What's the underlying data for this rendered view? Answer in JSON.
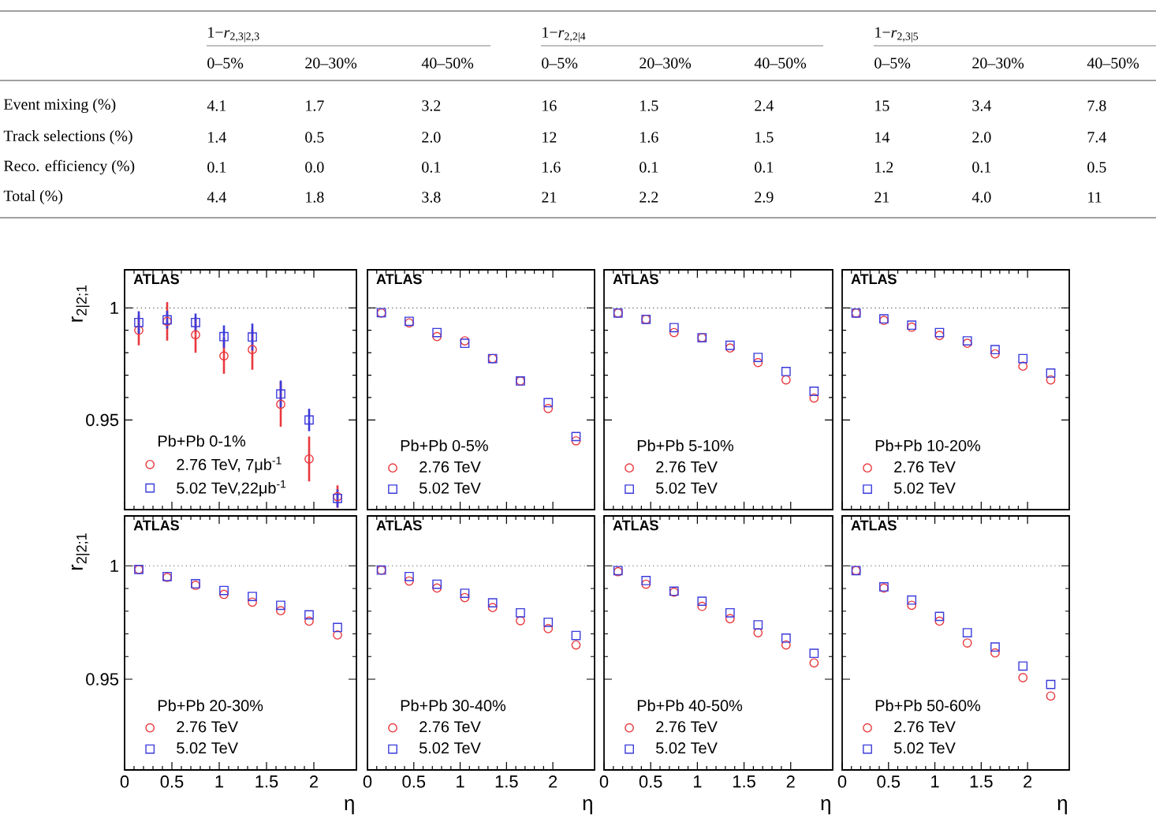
{
  "chart_data": [
    {
      "type": "other",
      "annotations": [
        "1−*r*$_{2,3|2,3}$",
        "1−*r*$_{2,2|4}$",
        "1−*r*$_{2,3|5}$",
        "0–5%",
        "20–30%",
        "40–50%",
        "0–5%",
        "20–30%",
        "40–50%",
        "0–5%",
        "20–30%",
        "40–50%",
        "Event mixing (%)",
        "4.1",
        "1.7",
        "3.2",
        "16",
        "1.5",
        "2.4",
        "15",
        "3.4",
        "7.8",
        "Track selections (%)",
        "1.4",
        "0.5",
        "2.0",
        "12",
        "1.6",
        "1.5",
        "14",
        "2.0",
        "7.4",
        "Reco. efficiency (%)",
        "0.1",
        "0.0",
        "0.1",
        "1.6",
        "0.1",
        "0.1",
        "1.2",
        "0.1",
        "0.5",
        "Total (%)",
        "4.4",
        "1.8",
        "3.8",
        "21",
        "2.2",
        "2.9",
        "21",
        "4.0",
        "11"
      ]
    },
    {
      "type": "scatter",
      "ylabel": "r$_{2|2;1}$",
      "legend_title": "Pb+Pb 0-1%",
      "legend": "bottom left",
      "annotations": [
        "ATLAS"
      ],
      "tick_labels": "y",
      "x": [
        0.15,
        0.45,
        0.75,
        1.05,
        1.35,
        1.65,
        1.95,
        2.25
      ],
      "xlim": [
        0,
        2.45
      ],
      "xticks": [
        0,
        0.5,
        1,
        1.5,
        2
      ],
      "ylim": [
        0.91,
        1.017
      ],
      "yticks": [
        0.95,
        1
      ],
      "ref_lines": [
        {
          "axis": "y",
          "value": 1,
          "line_style": "dotted",
          "color": "#555555"
        }
      ],
      "series": [
        {
          "name": "2.76 TeV, 7μb$^{-1}$",
          "color": "#e8383d",
          "marker": "circle",
          "values": [
            0.99,
            0.994,
            0.988,
            0.9786,
            0.9814,
            0.957,
            0.9326,
            0.9158
          ],
          "errors": [
            0.0067,
            0.0086,
            0.008,
            0.008,
            0.009,
            0.01,
            0.01,
            0.005
          ]
        },
        {
          "name": "5.02 TeV,22μb$^{-1}$",
          "color": "#3b3bdc",
          "marker": "square",
          "values": [
            0.9935,
            0.9947,
            0.9935,
            0.9872,
            0.987,
            0.9616,
            0.95,
            0.915
          ],
          "errors": [
            0.005,
            0.004,
            0.004,
            0.005,
            0.006,
            0.006,
            0.005,
            0.004
          ]
        }
      ]
    },
    {
      "type": "scatter",
      "legend_title": "Pb+Pb 0-5%",
      "legend": "bottom left",
      "annotations": [
        "ATLAS"
      ],
      "tick_labels": false,
      "x": [
        0.15,
        0.45,
        0.75,
        1.05,
        1.35,
        1.65,
        1.95,
        2.25
      ],
      "xlim": [
        0,
        2.45
      ],
      "xticks": [
        0,
        0.5,
        1,
        1.5,
        2
      ],
      "ylim": [
        0.91,
        1.017
      ],
      "yticks": [
        0.95,
        1
      ],
      "ref_lines": [
        {
          "axis": "y",
          "value": 1,
          "line_style": "dotted",
          "color": "#555555"
        }
      ],
      "series": [
        {
          "name": "2.76 TeV",
          "color": "#e8383d",
          "marker": "circle",
          "values": [
            0.9977,
            0.9933,
            0.9872,
            0.9853,
            0.9774,
            0.9674,
            0.9551,
            0.9407
          ]
        },
        {
          "name": "5.02 TeV",
          "color": "#3b3bdc",
          "marker": "square",
          "values": [
            0.9979,
            0.994,
            0.989,
            0.9842,
            0.9774,
            0.9674,
            0.9577,
            0.9426
          ]
        }
      ]
    },
    {
      "type": "scatter",
      "legend_title": "Pb+Pb 5-10%",
      "legend": "bottom left",
      "annotations": [
        "ATLAS"
      ],
      "tick_labels": false,
      "x": [
        0.15,
        0.45,
        0.75,
        1.05,
        1.35,
        1.65,
        1.95,
        2.25
      ],
      "xlim": [
        0,
        2.45
      ],
      "xticks": [
        0,
        0.5,
        1,
        1.5,
        2
      ],
      "ylim": [
        0.91,
        1.017
      ],
      "yticks": [
        0.95,
        1
      ],
      "ref_lines": [
        {
          "axis": "y",
          "value": 1,
          "line_style": "dotted",
          "color": "#555555"
        }
      ],
      "series": [
        {
          "name": "2.76 TeV",
          "color": "#e8383d",
          "marker": "circle",
          "values": [
            0.9977,
            0.9949,
            0.989,
            0.9867,
            0.9821,
            0.9756,
            0.9679,
            0.9598
          ]
        },
        {
          "name": "5.02 TeV",
          "color": "#3b3bdc",
          "marker": "square",
          "values": [
            0.9977,
            0.9949,
            0.9912,
            0.9867,
            0.9833,
            0.9779,
            0.9716,
            0.9628
          ]
        }
      ]
    },
    {
      "type": "scatter",
      "legend_title": "Pb+Pb 10-20%",
      "legend": "bottom left",
      "annotations": [
        "ATLAS"
      ],
      "tick_labels": false,
      "x": [
        0.15,
        0.45,
        0.75,
        1.05,
        1.35,
        1.65,
        1.95,
        2.25
      ],
      "xlim": [
        0,
        2.45
      ],
      "xticks": [
        0,
        0.5,
        1,
        1.5,
        2
      ],
      "ylim": [
        0.91,
        1.017
      ],
      "yticks": [
        0.95,
        1
      ],
      "ref_lines": [
        {
          "axis": "y",
          "value": 1,
          "line_style": "dotted",
          "color": "#555555"
        }
      ],
      "series": [
        {
          "name": "2.76 TeV",
          "color": "#e8383d",
          "marker": "circle",
          "values": [
            0.9977,
            0.9944,
            0.9914,
            0.9877,
            0.9842,
            0.9795,
            0.974,
            0.9679
          ]
        },
        {
          "name": "5.02 TeV",
          "color": "#3b3bdc",
          "marker": "square",
          "values": [
            0.9977,
            0.9951,
            0.9923,
            0.989,
            0.9853,
            0.9814,
            0.9774,
            0.9709
          ]
        }
      ]
    },
    {
      "type": "scatter",
      "ylabel": "r$_{2|2;1}$",
      "xlabel": "η",
      "legend_title": "Pb+Pb 20-30%",
      "legend": "bottom left",
      "annotations": [
        "ATLAS"
      ],
      "x": [
        0.15,
        0.45,
        0.75,
        1.05,
        1.35,
        1.65,
        1.95,
        2.25
      ],
      "xlim": [
        0,
        2.45
      ],
      "xticks": [
        0,
        0.5,
        1,
        1.5,
        2
      ],
      "ylim": [
        0.91,
        1.022
      ],
      "yticks": [
        0.95,
        1
      ],
      "ref_lines": [
        {
          "axis": "y",
          "value": 1,
          "line_style": "dotted",
          "color": "#555555"
        }
      ],
      "series": [
        {
          "name": "2.76 TeV",
          "color": "#e8383d",
          "marker": "circle",
          "values": [
            0.9984,
            0.9949,
            0.9914,
            0.9874,
            0.984,
            0.9802,
            0.9756,
            0.9695
          ]
        },
        {
          "name": "5.02 TeV",
          "color": "#3b3bdc",
          "marker": "square",
          "values": [
            0.9984,
            0.9953,
            0.9921,
            0.9891,
            0.9865,
            0.9826,
            0.9784,
            0.9728
          ]
        }
      ]
    },
    {
      "type": "scatter",
      "xlabel": "η",
      "legend_title": "Pb+Pb 30-40%",
      "legend": "bottom left",
      "annotations": [
        "ATLAS"
      ],
      "tick_labels": "x",
      "x": [
        0.15,
        0.45,
        0.75,
        1.05,
        1.35,
        1.65,
        1.95,
        2.25
      ],
      "xlim": [
        0,
        2.45
      ],
      "xticks": [
        0,
        0.5,
        1,
        1.5,
        2
      ],
      "ylim": [
        0.91,
        1.022
      ],
      "yticks": [
        0.95,
        1
      ],
      "ref_lines": [
        {
          "axis": "y",
          "value": 1,
          "line_style": "dotted",
          "color": "#555555"
        }
      ],
      "series": [
        {
          "name": "2.76 TeV",
          "color": "#e8383d",
          "marker": "circle",
          "values": [
            0.9981,
            0.9933,
            0.9902,
            0.986,
            0.9816,
            0.9758,
            0.9723,
            0.9651
          ]
        },
        {
          "name": "5.02 TeV",
          "color": "#3b3bdc",
          "marker": "square",
          "values": [
            0.9981,
            0.9953,
            0.9919,
            0.9879,
            0.9837,
            0.9793,
            0.9751,
            0.9693
          ]
        }
      ]
    },
    {
      "type": "scatter",
      "xlabel": "η",
      "legend_title": "Pb+Pb 40-50%",
      "legend": "bottom left",
      "annotations": [
        "ATLAS"
      ],
      "tick_labels": "x",
      "x": [
        0.15,
        0.45,
        0.75,
        1.05,
        1.35,
        1.65,
        1.95,
        2.25
      ],
      "xlim": [
        0,
        2.45
      ],
      "xticks": [
        0,
        0.5,
        1,
        1.5,
        2
      ],
      "ylim": [
        0.91,
        1.022
      ],
      "yticks": [
        0.95,
        1
      ],
      "ref_lines": [
        {
          "axis": "y",
          "value": 1,
          "line_style": "dotted",
          "color": "#555555"
        }
      ],
      "series": [
        {
          "name": "2.76 TeV",
          "color": "#e8383d",
          "marker": "circle",
          "values": [
            0.9974,
            0.9919,
            0.9884,
            0.9821,
            0.9767,
            0.9705,
            0.9651,
            0.9572
          ]
        },
        {
          "name": "5.02 TeV",
          "color": "#3b3bdc",
          "marker": "square",
          "values": [
            0.9979,
            0.9935,
            0.9888,
            0.9844,
            0.9793,
            0.974,
            0.9681,
            0.9614
          ]
        }
      ]
    },
    {
      "type": "scatter",
      "xlabel": "η",
      "legend_title": "Pb+Pb 50-60%",
      "legend": "bottom left",
      "annotations": [
        "ATLAS"
      ],
      "tick_labels": "x",
      "x": [
        0.15,
        0.45,
        0.75,
        1.05,
        1.35,
        1.65,
        1.95,
        2.25
      ],
      "xlim": [
        0,
        2.45
      ],
      "xticks": [
        0,
        0.5,
        1,
        1.5,
        2
      ],
      "ylim": [
        0.91,
        1.022
      ],
      "yticks": [
        0.95,
        1
      ],
      "ref_lines": [
        {
          "axis": "y",
          "value": 1,
          "line_style": "dotted",
          "color": "#555555"
        }
      ],
      "series": [
        {
          "name": "2.76 TeV",
          "color": "#e8383d",
          "marker": "circle",
          "values": [
            0.9979,
            0.9902,
            0.9826,
            0.9756,
            0.966,
            0.9616,
            0.9507,
            0.9426
          ]
        },
        {
          "name": "5.02 TeV",
          "color": "#3b3bdc",
          "marker": "square",
          "values": [
            0.9979,
            0.9907,
            0.9849,
            0.9777,
            0.9705,
            0.9642,
            0.9558,
            0.9477
          ]
        }
      ]
    }
  ]
}
